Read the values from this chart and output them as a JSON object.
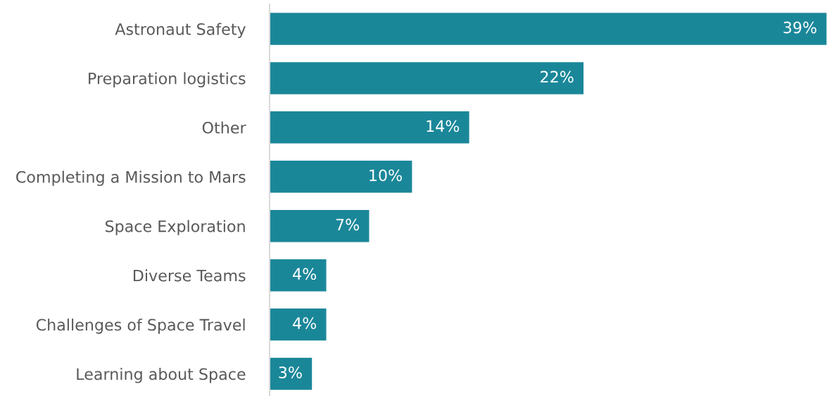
{
  "chart_data": {
    "type": "bar",
    "orientation": "horizontal",
    "categories": [
      "Astronaut Safety",
      "Preparation logistics",
      "Other",
      "Completing a Mission to Mars",
      "Space Exploration",
      "Diverse Teams",
      "Challenges of Space Travel",
      "Learning about Space"
    ],
    "values": [
      39,
      22,
      14,
      10,
      7,
      4,
      4,
      3
    ],
    "value_labels": [
      "39%",
      "22%",
      "14%",
      "10%",
      "7%",
      "4%",
      "4%",
      "3%"
    ],
    "color": "#1a8799",
    "grid": false,
    "legend": false
  }
}
